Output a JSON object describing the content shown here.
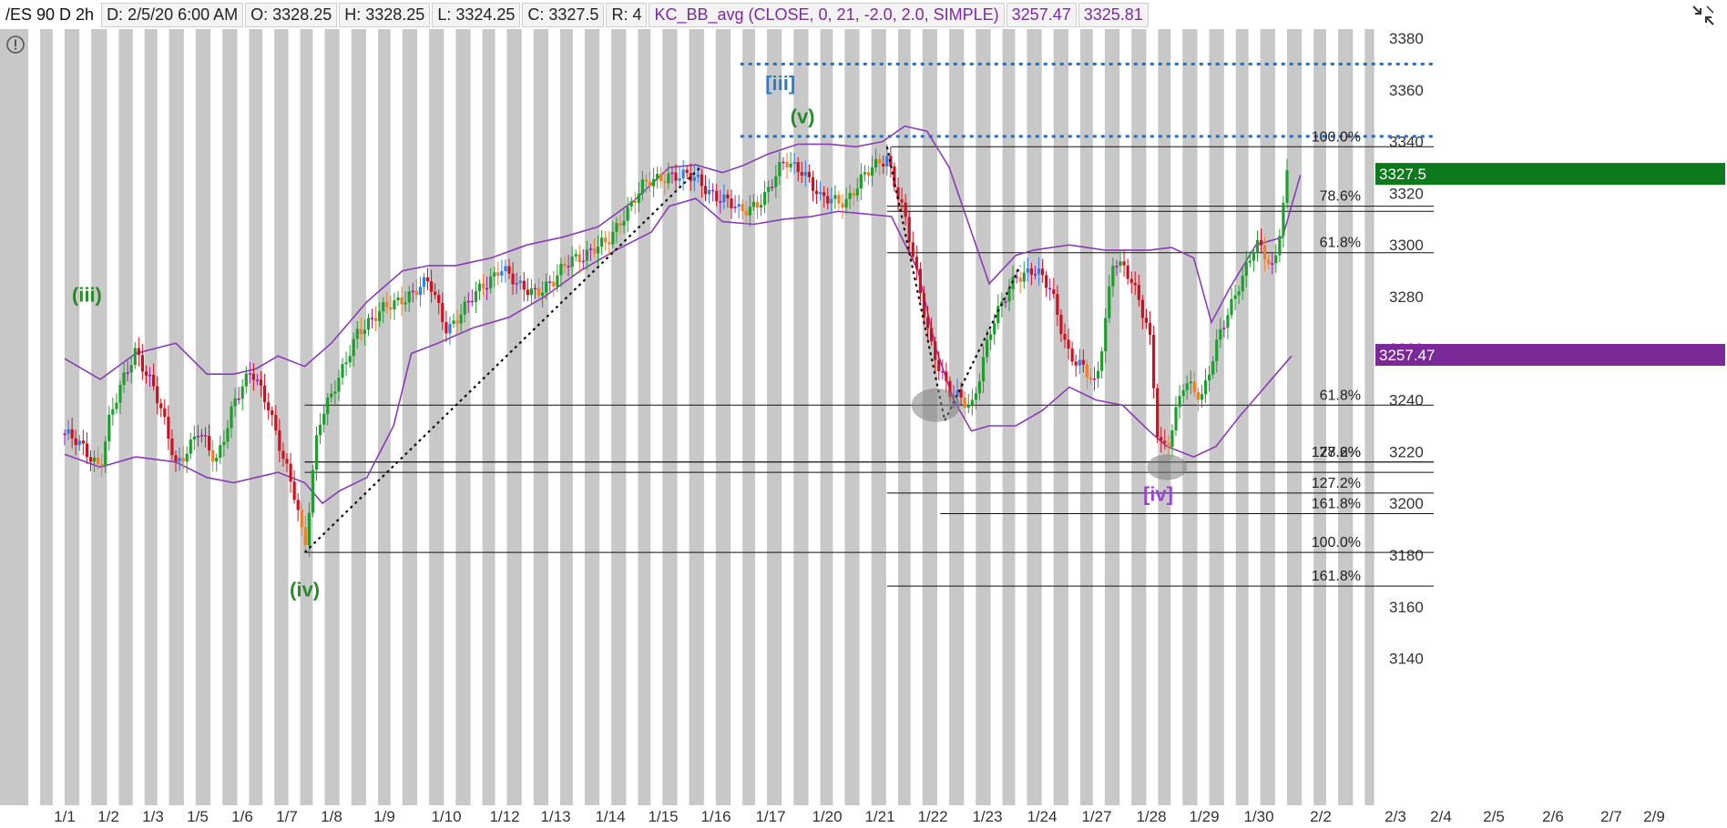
{
  "header": {
    "symbol": "/ES 90 D 2h",
    "date": "D: 2/5/20 6:00 AM",
    "open": "O: 3328.25",
    "high": "H: 3328.25",
    "low": "L: 3324.25",
    "close": "C: 3327.5",
    "range": "R: 4",
    "study": "KC_BB_avg (CLOSE, 0, 21, -2.0, 2.0, SIMPLE)",
    "study_val1": "3257.47",
    "study_val2": "3325.81"
  },
  "icons": {
    "toolbar": "arrows-collapse-icon",
    "alert": "exclamation-circle-icon"
  },
  "colors": {
    "shade": "#c8c8c8",
    "up_strong": "#1f9e2f",
    "up_weak": "#2e7fe6",
    "down_strong": "#d0101e",
    "down_weak": "#f07f2a",
    "neutral": "#a01aa6",
    "band": "#8a3cb5",
    "dotted_blue": "#1f6fc2",
    "wave_green": "#2a8a2a",
    "wave_blue": "#2a7fc8",
    "wave_purple": "#9a45d6",
    "last_price_bg": "#0c7a1c",
    "study_bg": "#7a2a96"
  },
  "chart_data": {
    "type": "candlestick",
    "ylim": [
      3135,
      3386
    ],
    "y_ticks": [
      3140,
      3160,
      3180,
      3200,
      3220,
      3240,
      3260,
      3280,
      3300,
      3320,
      3340,
      3360,
      3380
    ],
    "x_tick_labels": [
      "1/1",
      "1/2",
      "1/3",
      "1/5",
      "1/6",
      "1/7",
      "1/8",
      "1/9",
      "1/10",
      "1/12",
      "1/13",
      "1/14",
      "1/15",
      "1/16",
      "1/17",
      "1/20",
      "1/21",
      "1/22",
      "1/23",
      "1/24",
      "1/27",
      "1/28",
      "1/29",
      "1/30",
      "2/2",
      "2/3",
      "2/4",
      "2/5",
      "2/6",
      "2/7",
      "2/9"
    ],
    "x_tick_index": [
      0,
      1,
      2,
      3,
      4,
      5,
      6,
      7,
      8,
      9,
      10,
      11,
      12,
      13,
      14,
      15,
      16,
      17,
      18,
      19,
      20,
      21,
      22,
      23,
      24,
      25,
      26,
      27,
      28,
      29,
      30
    ],
    "price_path": [
      [
        0,
        3227
      ],
      [
        0.8,
        3215
      ],
      [
        1,
        3232
      ],
      [
        1.6,
        3260
      ],
      [
        2,
        3245
      ],
      [
        2.5,
        3215
      ],
      [
        3,
        3228
      ],
      [
        3.4,
        3215
      ],
      [
        3.8,
        3240
      ],
      [
        4.2,
        3250
      ],
      [
        4.6,
        3238
      ],
      [
        5.2,
        3200
      ],
      [
        5.4,
        3182
      ],
      [
        5.7,
        3232
      ],
      [
        6.2,
        3248
      ],
      [
        6.6,
        3268
      ],
      [
        7,
        3272
      ],
      [
        7.6,
        3280
      ],
      [
        8.2,
        3285
      ],
      [
        8.6,
        3268
      ],
      [
        9,
        3275
      ],
      [
        9.4,
        3284
      ],
      [
        9.8,
        3292
      ],
      [
        10.2,
        3283
      ],
      [
        10.6,
        3283
      ],
      [
        11,
        3285
      ],
      [
        11.4,
        3295
      ],
      [
        12.2,
        3300
      ],
      [
        12.6,
        3313
      ],
      [
        13,
        3322
      ],
      [
        13.6,
        3328
      ],
      [
        14.2,
        3325
      ],
      [
        14.8,
        3318
      ],
      [
        15.2,
        3312
      ],
      [
        15.8,
        3320
      ],
      [
        16.2,
        3332
      ],
      [
        16.6,
        3330
      ],
      [
        17,
        3317
      ],
      [
        17.6,
        3318
      ],
      [
        18.2,
        3330
      ],
      [
        18.5,
        3335
      ],
      [
        18.9,
        3310
      ],
      [
        19.2,
        3285
      ],
      [
        19.5,
        3262
      ],
      [
        19.9,
        3242
      ],
      [
        20.4,
        3238
      ],
      [
        20.8,
        3265
      ],
      [
        21.4,
        3289
      ],
      [
        21.8,
        3290
      ],
      [
        22.2,
        3282
      ],
      [
        22.6,
        3258
      ],
      [
        23.2,
        3245
      ],
      [
        23.6,
        3296
      ],
      [
        24,
        3285
      ],
      [
        24.4,
        3268
      ],
      [
        24.6,
        3225
      ],
      [
        24.8,
        3220
      ],
      [
        25.2,
        3248
      ],
      [
        25.6,
        3242
      ],
      [
        26,
        3265
      ],
      [
        26.4,
        3285
      ],
      [
        26.8,
        3300
      ],
      [
        27.2,
        3290
      ],
      [
        27.5,
        3328
      ]
    ],
    "upper_band": [
      [
        0,
        3256
      ],
      [
        0.8,
        3248
      ],
      [
        1.6,
        3258
      ],
      [
        2.5,
        3262
      ],
      [
        3.2,
        3250
      ],
      [
        3.8,
        3250
      ],
      [
        4.3,
        3252
      ],
      [
        4.8,
        3257
      ],
      [
        5.4,
        3253
      ],
      [
        6,
        3262
      ],
      [
        6.8,
        3278
      ],
      [
        7.6,
        3290
      ],
      [
        8.2,
        3292
      ],
      [
        8.8,
        3292
      ],
      [
        9.6,
        3295
      ],
      [
        10.4,
        3300
      ],
      [
        11.2,
        3303
      ],
      [
        12,
        3307
      ],
      [
        12.8,
        3317
      ],
      [
        13.6,
        3330
      ],
      [
        14.2,
        3331
      ],
      [
        14.8,
        3328
      ],
      [
        15.3,
        3331
      ],
      [
        15.8,
        3335
      ],
      [
        16.5,
        3339
      ],
      [
        17.2,
        3339
      ],
      [
        17.8,
        3338
      ],
      [
        18.4,
        3340
      ],
      [
        18.9,
        3346
      ],
      [
        19.4,
        3344
      ],
      [
        19.9,
        3330
      ],
      [
        20.4,
        3305
      ],
      [
        20.8,
        3285
      ],
      [
        21.4,
        3296
      ],
      [
        21.8,
        3298
      ],
      [
        22.6,
        3300
      ],
      [
        23.4,
        3298
      ],
      [
        23.8,
        3298
      ],
      [
        24.4,
        3298
      ],
      [
        24.9,
        3299
      ],
      [
        25.4,
        3295
      ],
      [
        25.8,
        3270
      ],
      [
        26.2,
        3283
      ],
      [
        26.8,
        3300
      ],
      [
        27.4,
        3303
      ],
      [
        27.8,
        3327
      ]
    ],
    "lower_band": [
      [
        0,
        3219
      ],
      [
        0.8,
        3214
      ],
      [
        1.6,
        3218
      ],
      [
        2.5,
        3216
      ],
      [
        3.2,
        3210
      ],
      [
        3.8,
        3208
      ],
      [
        4.3,
        3210
      ],
      [
        4.8,
        3212
      ],
      [
        5.4,
        3208
      ],
      [
        5.8,
        3200
      ],
      [
        6.2,
        3205
      ],
      [
        6.8,
        3210
      ],
      [
        7.4,
        3230
      ],
      [
        7.8,
        3258
      ],
      [
        8.4,
        3262
      ],
      [
        9.2,
        3268
      ],
      [
        10,
        3272
      ],
      [
        10.8,
        3280
      ],
      [
        11.6,
        3290
      ],
      [
        12.4,
        3298
      ],
      [
        13.2,
        3305
      ],
      [
        13.6,
        3315
      ],
      [
        14.2,
        3318
      ],
      [
        14.8,
        3309
      ],
      [
        15.5,
        3308
      ],
      [
        16.2,
        3310
      ],
      [
        16.8,
        3311
      ],
      [
        17.4,
        3313
      ],
      [
        18,
        3312
      ],
      [
        18.6,
        3311
      ],
      [
        19.2,
        3290
      ],
      [
        19.6,
        3260
      ],
      [
        20,
        3240
      ],
      [
        20.4,
        3228
      ],
      [
        20.8,
        3230
      ],
      [
        21.4,
        3230
      ],
      [
        22,
        3236
      ],
      [
        22.6,
        3245
      ],
      [
        23.2,
        3240
      ],
      [
        23.8,
        3238
      ],
      [
        24.4,
        3228
      ],
      [
        24.8,
        3222
      ],
      [
        25.4,
        3218
      ],
      [
        25.9,
        3222
      ],
      [
        26.4,
        3233
      ],
      [
        27,
        3245
      ],
      [
        27.6,
        3257
      ]
    ],
    "dotted_trendlines": [
      {
        "from": [
          5.4,
          3181
        ],
        "to": [
          14.3,
          3330
        ]
      },
      {
        "from": [
          18.5,
          3338
        ],
        "to": [
          19.8,
          3232
        ]
      },
      {
        "from": [
          19.8,
          3232
        ],
        "to": [
          21.5,
          3292
        ]
      }
    ],
    "horizontal_levels": [
      {
        "value": 3370,
        "from": 15.2,
        "to": 30.8,
        "style": "dotted-blue"
      },
      {
        "value": 3342,
        "from": 15.2,
        "to": 30.8,
        "style": "dotted-blue"
      },
      {
        "value": 3338,
        "from": 18.6,
        "to": 30.8,
        "label": "100.0%"
      },
      {
        "value": 3315,
        "from": 18.5,
        "to": 30.8,
        "label": "78.6%"
      },
      {
        "value": 3313,
        "from": 18.5,
        "to": 30.8,
        "label": ""
      },
      {
        "value": 3297,
        "from": 18.5,
        "to": 30.8,
        "label": "61.8%"
      },
      {
        "value": 3238,
        "from": 5.4,
        "to": 30.8,
        "label": "61.8%"
      },
      {
        "value": 3216,
        "from": 5.4,
        "to": 30.8,
        "label": "127.2%"
      },
      {
        "value": 3216,
        "from": 5.4,
        "to": 30.8,
        "label": "78.6%"
      },
      {
        "value": 3212,
        "from": 5.4,
        "to": 30.8,
        "label": ""
      },
      {
        "value": 3204,
        "from": 18.5,
        "to": 30.8,
        "label": "127.2%"
      },
      {
        "value": 3196,
        "from": 19.7,
        "to": 30.8,
        "label": "161.8%"
      },
      {
        "value": 3181,
        "from": 5.4,
        "to": 30.8,
        "label": "100.0%"
      },
      {
        "value": 3168,
        "from": 18.5,
        "to": 30.8,
        "label": "161.8%"
      }
    ],
    "wave_labels": [
      {
        "text": "(iii)",
        "x": 0.5,
        "y": 3278,
        "color": "green"
      },
      {
        "text": "(iv)",
        "x": 5.4,
        "y": 3164,
        "color": "green"
      },
      {
        "text": "(v)",
        "x": 16.6,
        "y": 3347,
        "color": "green"
      },
      {
        "text": "[iii]",
        "x": 16.1,
        "y": 3360,
        "color": "blue"
      },
      {
        "text": "[iv]",
        "x": 24.6,
        "y": 3201,
        "color": "purple"
      }
    ],
    "ellipses": [
      {
        "x": 19.6,
        "y": 3238,
        "rx": 0.55,
        "ry": 6.5
      },
      {
        "x": 24.8,
        "y": 3214,
        "rx": 0.45,
        "ry": 5
      }
    ],
    "price_labels": [
      {
        "value": 3327.5,
        "text": "3327.5",
        "bg": "green"
      },
      {
        "value": 3257.47,
        "text": "3257.47",
        "bg": "purple"
      }
    ]
  }
}
